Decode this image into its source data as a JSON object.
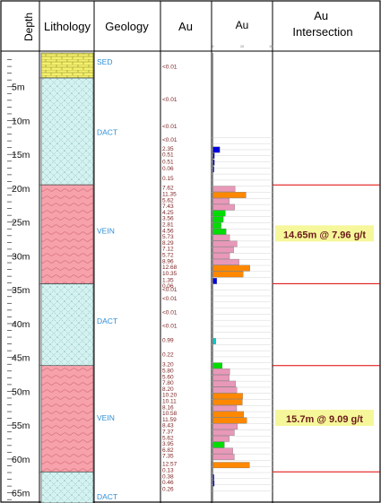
{
  "headers": {
    "depth": "Depth",
    "lithology": "Lithology",
    "geology": "Geology",
    "au_value": "Au",
    "au_chart": "Au",
    "intersection": "Au\nIntersection"
  },
  "chart_scale_ticks": [
    "0",
    "10",
    "20"
  ],
  "depth_axis": {
    "min": 0,
    "max": 66.5,
    "unit": "m",
    "labels": [
      "5m",
      "10m",
      "15m",
      "20m",
      "25m",
      "30m",
      "35m",
      "40m",
      "45m",
      "50m",
      "55m",
      "60m",
      "65m"
    ],
    "label_depths": [
      5,
      10,
      15,
      20,
      25,
      30,
      35,
      40,
      45,
      50,
      55,
      60,
      65
    ]
  },
  "lithology_units": [
    {
      "from": 0.0,
      "to": 3.7,
      "rock": "SED",
      "pattern": "brick",
      "color": "#f4f06c"
    },
    {
      "from": 3.7,
      "to": 19.5,
      "rock": "DACT",
      "pattern": "crosshatch",
      "color": "#d3f2f0"
    },
    {
      "from": 19.5,
      "to": 34.1,
      "rock": "VEIN",
      "pattern": "wavy",
      "color": "#f7a2ab"
    },
    {
      "from": 34.1,
      "to": 46.2,
      "rock": "DACT",
      "pattern": "crosshatch",
      "color": "#d3f2f0"
    },
    {
      "from": 46.2,
      "to": 61.9,
      "rock": "VEIN",
      "pattern": "wavy",
      "color": "#f7a2ab"
    },
    {
      "from": 61.9,
      "to": 66.5,
      "rock": "DACT",
      "pattern": "crosshatch",
      "color": "#d3f2f0"
    }
  ],
  "geology_labels": [
    {
      "text": "SED",
      "depth": 1.3
    },
    {
      "text": "DACT",
      "depth": 11.7
    },
    {
      "text": "VEIN",
      "depth": 26.3
    },
    {
      "text": "DACT",
      "depth": 39.6
    },
    {
      "text": "VEIN",
      "depth": 53.9
    },
    {
      "text": "DACT",
      "depth": 65.6
    }
  ],
  "assay_labels": [
    {
      "text": "<0.01",
      "depth": 2.0
    },
    {
      "text": "<0.01",
      "depth": 6.8
    },
    {
      "text": "<0.01",
      "depth": 10.8
    },
    {
      "text": "<0.01",
      "depth": 12.8
    },
    {
      "text": "2.35",
      "depth": 14.1
    },
    {
      "text": "0.51",
      "depth": 15.0
    },
    {
      "text": "0.51",
      "depth": 16.0
    },
    {
      "text": "0.06",
      "depth": 17.0
    },
    {
      "text": "0.15",
      "depth": 18.5
    },
    {
      "text": "7.62",
      "depth": 19.9
    },
    {
      "text": "11.35",
      "depth": 20.8
    },
    {
      "text": "5.62",
      "depth": 21.7
    },
    {
      "text": "7.43",
      "depth": 22.6
    },
    {
      "text": "4.25",
      "depth": 23.5
    },
    {
      "text": "3.56",
      "depth": 24.4
    },
    {
      "text": "2.81",
      "depth": 25.3
    },
    {
      "text": "4.56",
      "depth": 26.2
    },
    {
      "text": "5.73",
      "depth": 27.1
    },
    {
      "text": "8.29",
      "depth": 28.0
    },
    {
      "text": "7.12",
      "depth": 28.9
    },
    {
      "text": "5.72",
      "depth": 29.8
    },
    {
      "text": "8.96",
      "depth": 30.7
    },
    {
      "text": "12.68",
      "depth": 31.6
    },
    {
      "text": "10.35",
      "depth": 32.5
    },
    {
      "text": "1.35",
      "depth": 33.5
    },
    {
      "text": "0.06",
      "depth": 34.4
    },
    {
      "text": "<0.01",
      "depth": 34.9
    },
    {
      "text": "<0.01",
      "depth": 36.2
    },
    {
      "text": "<0.01",
      "depth": 38.3
    },
    {
      "text": "<0.01",
      "depth": 40.3
    },
    {
      "text": "0.99",
      "depth": 42.4
    },
    {
      "text": "0.22",
      "depth": 44.5
    },
    {
      "text": "3.20",
      "depth": 46.0
    },
    {
      "text": "5.80",
      "depth": 46.9
    },
    {
      "text": "5.60",
      "depth": 47.8
    },
    {
      "text": "7.80",
      "depth": 48.7
    },
    {
      "text": "8.20",
      "depth": 49.6
    },
    {
      "text": "10.20",
      "depth": 50.5
    },
    {
      "text": "10.11",
      "depth": 51.4
    },
    {
      "text": "8.16",
      "depth": 52.3
    },
    {
      "text": "10.58",
      "depth": 53.2
    },
    {
      "text": "11.59",
      "depth": 54.1
    },
    {
      "text": "8.43",
      "depth": 55.0
    },
    {
      "text": "7.37",
      "depth": 55.9
    },
    {
      "text": "5.62",
      "depth": 56.8
    },
    {
      "text": "3.95",
      "depth": 57.7
    },
    {
      "text": "6.82",
      "depth": 58.6
    },
    {
      "text": "7.35",
      "depth": 59.5
    },
    {
      "text": "12.57",
      "depth": 60.7
    },
    {
      "text": "0.13",
      "depth": 61.6
    },
    {
      "text": "0.38",
      "depth": 62.5
    },
    {
      "text": "0.46",
      "depth": 63.4
    },
    {
      "text": "0.26",
      "depth": 64.4
    }
  ],
  "au_bars": [
    {
      "depth": 14.3,
      "value": 2.35,
      "color": "#0000dd"
    },
    {
      "depth": 15.2,
      "value": 0.51,
      "color": "#0000dd"
    },
    {
      "depth": 16.2,
      "value": 0.51,
      "color": "#0000dd"
    },
    {
      "depth": 17.2,
      "value": 0.06,
      "color": "#0000dd"
    },
    {
      "depth": 20.1,
      "value": 7.62,
      "color": "#e898b8"
    },
    {
      "depth": 21.0,
      "value": 11.35,
      "color": "#ff8800"
    },
    {
      "depth": 21.9,
      "value": 5.62,
      "color": "#e898b8"
    },
    {
      "depth": 22.8,
      "value": 7.43,
      "color": "#e898b8"
    },
    {
      "depth": 23.7,
      "value": 4.25,
      "color": "#00dd00"
    },
    {
      "depth": 24.6,
      "value": 3.56,
      "color": "#00dd00"
    },
    {
      "depth": 25.5,
      "value": 2.81,
      "color": "#00dd00"
    },
    {
      "depth": 26.4,
      "value": 4.56,
      "color": "#00dd00"
    },
    {
      "depth": 27.3,
      "value": 5.73,
      "color": "#e898b8"
    },
    {
      "depth": 28.2,
      "value": 8.29,
      "color": "#e898b8"
    },
    {
      "depth": 29.1,
      "value": 7.12,
      "color": "#e898b8"
    },
    {
      "depth": 30.0,
      "value": 5.72,
      "color": "#e898b8"
    },
    {
      "depth": 30.9,
      "value": 8.96,
      "color": "#e898b8"
    },
    {
      "depth": 31.8,
      "value": 12.68,
      "color": "#ff8800"
    },
    {
      "depth": 32.7,
      "value": 10.35,
      "color": "#ff8800"
    },
    {
      "depth": 33.7,
      "value": 1.35,
      "color": "#0000dd"
    },
    {
      "depth": 42.6,
      "value": 0.99,
      "color": "#00cccc"
    },
    {
      "depth": 46.2,
      "value": 3.2,
      "color": "#00dd00"
    },
    {
      "depth": 47.1,
      "value": 5.8,
      "color": "#e898b8"
    },
    {
      "depth": 48.0,
      "value": 5.6,
      "color": "#e898b8"
    },
    {
      "depth": 48.9,
      "value": 7.8,
      "color": "#e898b8"
    },
    {
      "depth": 49.8,
      "value": 8.2,
      "color": "#e898b8"
    },
    {
      "depth": 50.7,
      "value": 10.2,
      "color": "#ff8800"
    },
    {
      "depth": 51.6,
      "value": 10.11,
      "color": "#ff8800"
    },
    {
      "depth": 52.5,
      "value": 8.16,
      "color": "#e898b8"
    },
    {
      "depth": 53.4,
      "value": 10.58,
      "color": "#ff8800"
    },
    {
      "depth": 54.3,
      "value": 11.59,
      "color": "#ff8800"
    },
    {
      "depth": 55.2,
      "value": 8.43,
      "color": "#e898b8"
    },
    {
      "depth": 56.1,
      "value": 7.37,
      "color": "#e898b8"
    },
    {
      "depth": 57.0,
      "value": 5.62,
      "color": "#e898b8"
    },
    {
      "depth": 57.9,
      "value": 3.95,
      "color": "#00dd00"
    },
    {
      "depth": 58.8,
      "value": 6.82,
      "color": "#e898b8"
    },
    {
      "depth": 59.7,
      "value": 7.35,
      "color": "#e898b8"
    },
    {
      "depth": 60.9,
      "value": 12.57,
      "color": "#ff8800"
    },
    {
      "depth": 62.7,
      "value": 0.38,
      "color": "#0000dd"
    },
    {
      "depth": 63.6,
      "value": 0.46,
      "color": "#0000dd"
    }
  ],
  "intersections": [
    {
      "from": 19.5,
      "to": 34.1,
      "text": "14.65m @ 7.96 g/t"
    },
    {
      "from": 46.2,
      "to": 61.9,
      "text": "15.7m @ 9.09 g/t"
    }
  ],
  "colors": {
    "label_blue": "#2e8fd6",
    "assay_text": "#7a1f1f",
    "intersection_line": "#e00000",
    "highlight": "#f6f79a"
  }
}
